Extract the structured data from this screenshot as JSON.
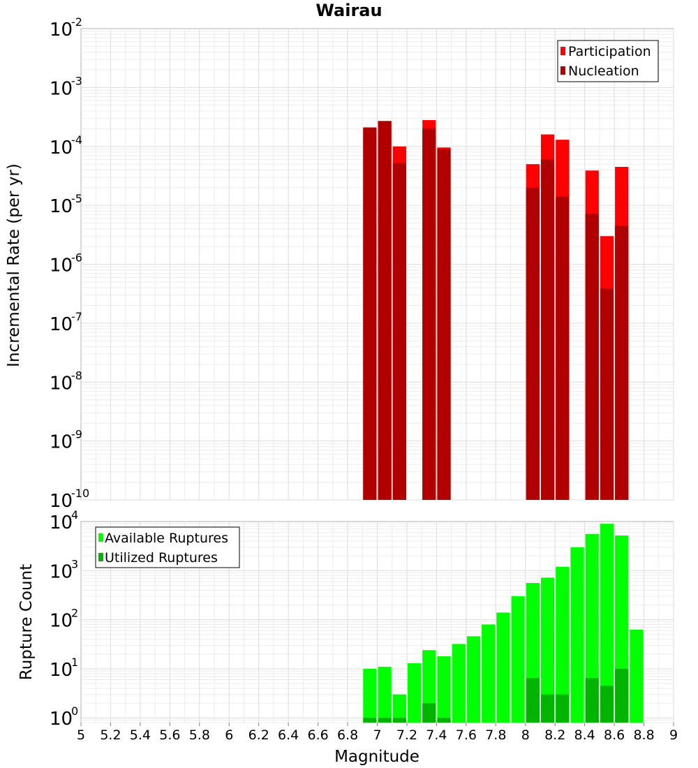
{
  "chart_data": [
    {
      "type": "bar",
      "title": "Wairau",
      "xlabel": "",
      "ylabel": "Incremental Rate (per yr)",
      "yscale": "log",
      "ylim": [
        1e-10,
        0.01
      ],
      "xlim": [
        5,
        9
      ],
      "bar_width": 0.1,
      "y_ticks": [
        {
          "base": "10",
          "exp": "-2",
          "value": 0.01
        },
        {
          "base": "10",
          "exp": "-3",
          "value": 0.001
        },
        {
          "base": "10",
          "exp": "-4",
          "value": 0.0001
        },
        {
          "base": "10",
          "exp": "-5",
          "value": 1e-05
        },
        {
          "base": "10",
          "exp": "-6",
          "value": 1e-06
        },
        {
          "base": "10",
          "exp": "-7",
          "value": 1e-07
        },
        {
          "base": "10",
          "exp": "-8",
          "value": 1e-08
        },
        {
          "base": "10",
          "exp": "-9",
          "value": 1e-09
        },
        {
          "base": "10",
          "exp": "-10",
          "value": 1e-10
        }
      ],
      "grid": true,
      "legend_position": "top-right",
      "series": [
        {
          "name": "Participation",
          "color": "#ff0000",
          "x": [
            6.95,
            7.05,
            7.15,
            7.35,
            7.45,
            8.05,
            8.15,
            8.25,
            8.45,
            8.55,
            8.65
          ],
          "values": [
            0.00021,
            0.00027,
            0.0001,
            0.00028,
            9.6e-05,
            5e-05,
            0.00016,
            0.00013,
            3.9e-05,
            3e-06,
            4.5e-05
          ]
        },
        {
          "name": "Nucleation",
          "color": "#b00000",
          "x": [
            6.95,
            7.05,
            7.15,
            7.35,
            7.45,
            8.05,
            8.15,
            8.25,
            8.45,
            8.55,
            8.65
          ],
          "values": [
            0.00021,
            0.00027,
            5.2e-05,
            0.0002,
            9e-05,
            2e-05,
            6e-05,
            1.4e-05,
            7.2e-06,
            3.9e-07,
            4.5e-06
          ]
        }
      ]
    },
    {
      "type": "bar",
      "title": "",
      "xlabel": "Magnitude",
      "ylabel": "Rupture Count",
      "yscale": "log",
      "ylim": [
        0.8,
        10000
      ],
      "xlim": [
        5,
        9
      ],
      "bar_width": 0.1,
      "y_ticks": [
        {
          "base": "10",
          "exp": "4",
          "value": 10000.0
        },
        {
          "base": "10",
          "exp": "3",
          "value": 1000.0
        },
        {
          "base": "10",
          "exp": "2",
          "value": 100.0
        },
        {
          "base": "10",
          "exp": "1",
          "value": 10.0
        },
        {
          "base": "10",
          "exp": "0",
          "value": 1
        }
      ],
      "x_ticks": [
        "5",
        "5.2",
        "5.4",
        "5.6",
        "5.8",
        "6",
        "6.2",
        "6.4",
        "6.6",
        "6.8",
        "7",
        "7.2",
        "7.4",
        "7.6",
        "7.8",
        "8",
        "8.2",
        "8.4",
        "8.6",
        "8.8",
        "9"
      ],
      "grid": true,
      "legend_position": "top-left",
      "series": [
        {
          "name": "Available Ruptures",
          "color": "#00ff00",
          "x": [
            6.95,
            7.05,
            7.15,
            7.25,
            7.35,
            7.45,
            7.55,
            7.65,
            7.75,
            7.85,
            7.95,
            8.05,
            8.15,
            8.25,
            8.35,
            8.45,
            8.55,
            8.65,
            8.75
          ],
          "values": [
            10,
            11,
            3,
            13,
            24,
            18,
            32,
            46,
            80,
            140,
            300,
            560,
            720,
            1200,
            3000,
            5600,
            9000,
            5200,
            63
          ]
        },
        {
          "name": "Utilized Ruptures",
          "color": "#00b400",
          "x": [
            6.95,
            7.05,
            7.15,
            7.35,
            7.45,
            8.05,
            8.15,
            8.25,
            8.45,
            8.55,
            8.65
          ],
          "values": [
            1,
            1,
            1,
            2,
            1,
            6.5,
            3,
            3,
            6.5,
            4.5,
            10
          ]
        }
      ]
    }
  ]
}
